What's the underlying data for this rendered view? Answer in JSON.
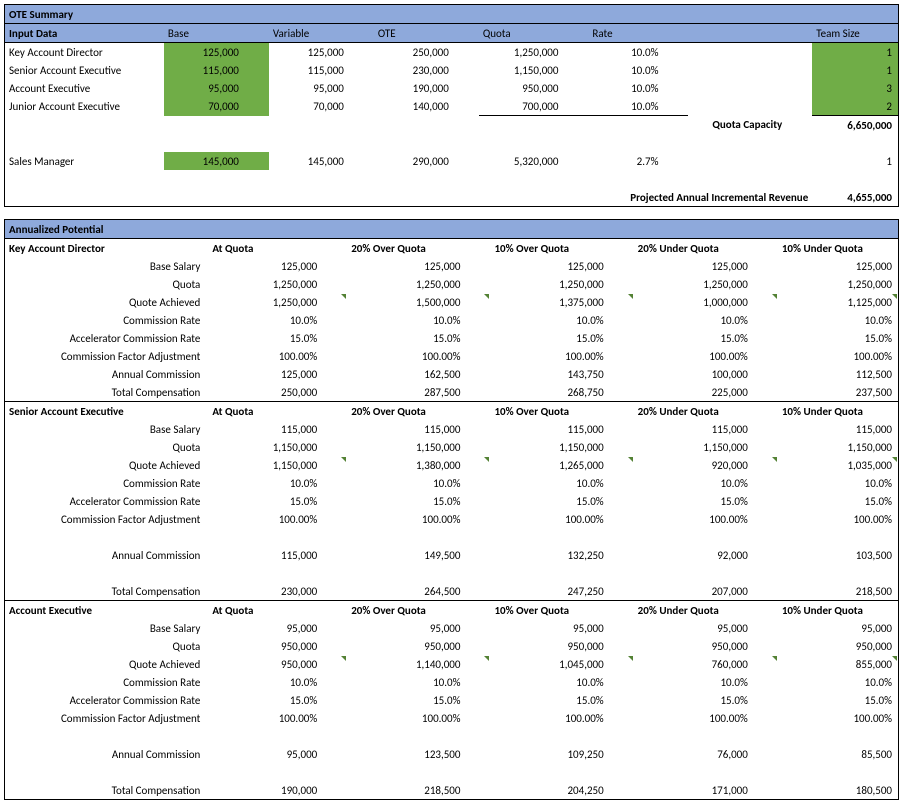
{
  "summary": {
    "title": "OTE Summary",
    "headerRow": [
      "Input Data",
      "Base",
      "Variable",
      "OTE",
      "Quota",
      "Rate",
      "",
      "Team Size"
    ],
    "rows": [
      {
        "role": "Key Account Director",
        "base": "125,000",
        "variable": "125,000",
        "ote": "250,000",
        "quota": "1,250,000",
        "rate": "10.0%",
        "team": "1",
        "baseGreen": true,
        "teamGreen": true
      },
      {
        "role": "Senior Account Executive",
        "base": "115,000",
        "variable": "115,000",
        "ote": "230,000",
        "quota": "1,150,000",
        "rate": "10.0%",
        "team": "1",
        "baseGreen": true,
        "teamGreen": true
      },
      {
        "role": "Account Executive",
        "base": "95,000",
        "variable": "95,000",
        "ote": "190,000",
        "quota": "950,000",
        "rate": "10.0%",
        "team": "3",
        "baseGreen": true,
        "teamGreen": true
      },
      {
        "role": "Junior Account Executive",
        "base": "70,000",
        "variable": "70,000",
        "ote": "140,000",
        "quota": "700,000",
        "rate": "10.0%",
        "team": "2",
        "baseGreen": true,
        "teamGreen": true
      }
    ],
    "quotaCapacityLabel": "Quota Capacity",
    "quotaCapacityValue": "6,650,000",
    "managerRow": {
      "role": "Sales Manager",
      "base": "145,000",
      "variable": "145,000",
      "ote": "290,000",
      "quota": "5,320,000",
      "rate": "2.7%",
      "team": "1",
      "baseGreen": true
    },
    "projectedLabel": "Projected Annual Incremental Revenue",
    "projectedValue": "4,655,000"
  },
  "potential": {
    "title": "Annualized Potential",
    "scenarioHeaders": [
      "At Quota",
      "20% Over Quota",
      "10% Over Quota",
      "20% Under Quota",
      "10% Under Quota"
    ],
    "metrics": [
      "Base Salary",
      "Quota",
      "Quote Achieved",
      "Commission Rate",
      "Accelerator Commission Rate",
      "Commission Factor Adjustment",
      "Annual Commission",
      "Total Compensation"
    ],
    "blocks": [
      {
        "role": "Key Account Director",
        "vals": [
          [
            "125,000",
            "125,000",
            "125,000",
            "125,000",
            "125,000"
          ],
          [
            "1,250,000",
            "1,250,000",
            "1,250,000",
            "1,250,000",
            "1,250,000"
          ],
          [
            "1,250,000",
            "1,500,000",
            "1,375,000",
            "1,000,000",
            "1,125,000"
          ],
          [
            "10.0%",
            "10.0%",
            "10.0%",
            "10.0%",
            "10.0%"
          ],
          [
            "15.0%",
            "15.0%",
            "15.0%",
            "15.0%",
            "15.0%"
          ],
          [
            "100.00%",
            "100.00%",
            "100.00%",
            "100.00%",
            "100.00%"
          ],
          [
            "125,000",
            "162,500",
            "143,750",
            "100,000",
            "112,500"
          ],
          [
            "250,000",
            "287,500",
            "268,750",
            "225,000",
            "237,500"
          ]
        ],
        "triRow": 2,
        "gapBeforeLast": false
      },
      {
        "role": "Senior Account Executive",
        "vals": [
          [
            "115,000",
            "115,000",
            "115,000",
            "115,000",
            "115,000"
          ],
          [
            "1,150,000",
            "1,150,000",
            "1,150,000",
            "1,150,000",
            "1,150,000"
          ],
          [
            "1,150,000",
            "1,380,000",
            "1,265,000",
            "920,000",
            "1,035,000"
          ],
          [
            "10.0%",
            "10.0%",
            "10.0%",
            "10.0%",
            "10.0%"
          ],
          [
            "15.0%",
            "15.0%",
            "15.0%",
            "15.0%",
            "15.0%"
          ],
          [
            "100.00%",
            "100.00%",
            "100.00%",
            "100.00%",
            "100.00%"
          ],
          [
            "115,000",
            "149,500",
            "132,250",
            "92,000",
            "103,500"
          ],
          [
            "230,000",
            "264,500",
            "247,250",
            "207,000",
            "218,500"
          ]
        ],
        "triRow": 2,
        "gapBeforeLast": true
      },
      {
        "role": "Account Executive",
        "vals": [
          [
            "95,000",
            "95,000",
            "95,000",
            "95,000",
            "95,000"
          ],
          [
            "950,000",
            "950,000",
            "950,000",
            "950,000",
            "950,000"
          ],
          [
            "950,000",
            "1,140,000",
            "1,045,000",
            "760,000",
            "855,000"
          ],
          [
            "10.0%",
            "10.0%",
            "10.0%",
            "10.0%",
            "10.0%"
          ],
          [
            "15.0%",
            "15.0%",
            "15.0%",
            "15.0%",
            "15.0%"
          ],
          [
            "100.00%",
            "100.00%",
            "100.00%",
            "100.00%",
            "100.00%"
          ],
          [
            "95,000",
            "123,500",
            "109,250",
            "76,000",
            "85,500"
          ],
          [
            "190,000",
            "218,500",
            "204,250",
            "171,000",
            "180,500"
          ]
        ],
        "triRow": 2,
        "gapBeforeLast": true
      }
    ]
  }
}
